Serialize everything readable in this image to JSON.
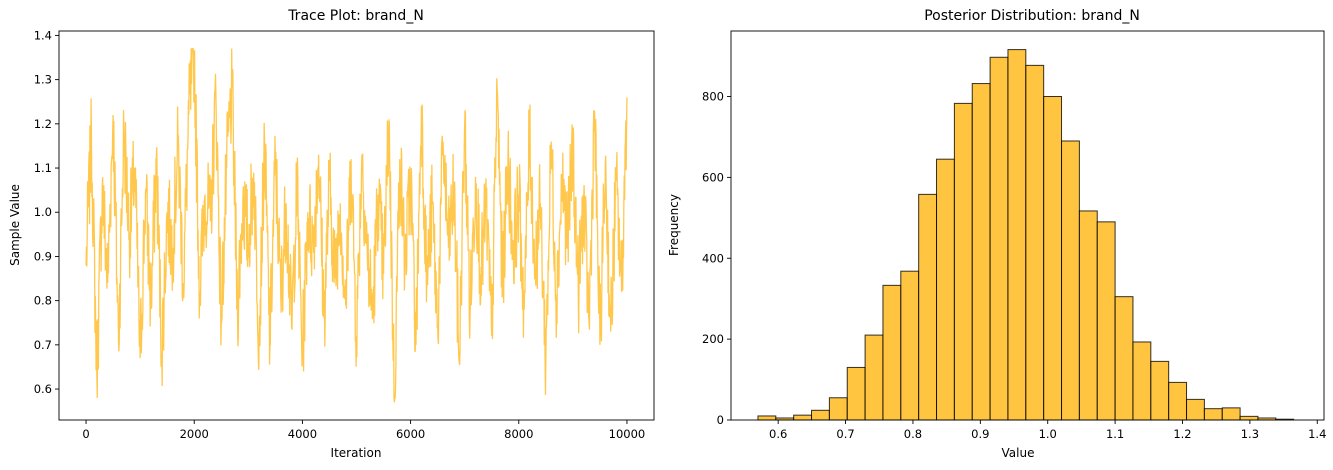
{
  "chart_data": [
    {
      "type": "line",
      "title": "Trace Plot: brand_N",
      "xlabel": "Iteration",
      "ylabel": "Sample Value",
      "xlim": [
        -500,
        10500
      ],
      "ylim": [
        0.53,
        1.41
      ],
      "xticks": [
        0,
        2000,
        4000,
        6000,
        8000,
        10000
      ],
      "xtick_labels": [
        "0",
        "2000",
        "4000",
        "6000",
        "8000",
        "10000"
      ],
      "yticks": [
        0.6,
        0.7,
        0.8,
        0.9,
        1.0,
        1.1,
        1.2,
        1.3,
        1.4
      ],
      "ytick_labels": [
        "0.6",
        "0.7",
        "0.8",
        "0.9",
        "1.0",
        "1.1",
        "1.2",
        "1.3",
        "1.4"
      ],
      "color": "#ffb000",
      "alpha": 0.7,
      "grid": false,
      "series": [
        {
          "x": [
            0,
            100,
            200,
            300,
            400,
            500,
            600,
            700,
            800,
            900,
            1000,
            1100,
            1200,
            1300,
            1400,
            1500,
            1600,
            1700,
            1800,
            1900,
            2000,
            2100,
            2200,
            2300,
            2400,
            2500,
            2600,
            2700,
            2800,
            2900,
            3000,
            3100,
            3200,
            3300,
            3400,
            3500,
            3600,
            3700,
            3800,
            3900,
            4000,
            4100,
            4200,
            4300,
            4400,
            4500,
            4600,
            4700,
            4800,
            4900,
            5000,
            5100,
            5200,
            5300,
            5400,
            5500,
            5600,
            5700,
            5800,
            5900,
            6000,
            6100,
            6200,
            6300,
            6400,
            6500,
            6600,
            6700,
            6800,
            6900,
            7000,
            7100,
            7200,
            7300,
            7400,
            7500,
            7600,
            7700,
            7800,
            7900,
            8000,
            8100,
            8200,
            8300,
            8400,
            8500,
            8600,
            8700,
            8800,
            8900,
            9000,
            9100,
            9200,
            9300,
            9400,
            9500,
            9600,
            9700,
            9800,
            9900,
            10000
          ],
          "values": [
            0.88,
            1.17,
            0.63,
            1.06,
            0.84,
            1.22,
            0.71,
            1.19,
            0.95,
            1.1,
            0.67,
            1.05,
            0.79,
            1.12,
            0.68,
            1.0,
            0.92,
            1.15,
            0.84,
            1.22,
            1.36,
            0.82,
            1.04,
            0.98,
            1.27,
            0.75,
            1.1,
            1.28,
            0.78,
            1.03,
            0.93,
            1.09,
            0.72,
            1.16,
            0.7,
            1.12,
            0.81,
            1.02,
            0.74,
            1.06,
            0.67,
            1.0,
            0.93,
            1.13,
            0.76,
            1.07,
            0.85,
            1.02,
            0.79,
            1.12,
            0.72,
            1.13,
            0.9,
            0.77,
            1.04,
            0.86,
            1.21,
            0.57,
            1.12,
            0.88,
            1.08,
            0.7,
            1.24,
            0.84,
            1.02,
            0.74,
            1.16,
            0.92,
            1.05,
            0.66,
            1.2,
            0.77,
            1.08,
            0.86,
            1.01,
            0.72,
            1.28,
            0.83,
            1.12,
            0.91,
            1.04,
            0.78,
            1.18,
            0.87,
            1.02,
            0.66,
            1.16,
            0.8,
            1.08,
            0.94,
            1.15,
            0.82,
            1.03,
            0.75,
            1.23,
            0.7,
            1.11,
            0.73,
            1.07,
            0.82,
            1.26
          ]
        }
      ]
    },
    {
      "type": "bar",
      "title": "Posterior Distribution: brand_N",
      "xlabel": "Value",
      "ylabel": "Frequency",
      "xlim": [
        0.53,
        1.41
      ],
      "ylim": [
        0,
        962
      ],
      "xticks": [
        0.6,
        0.7,
        0.8,
        0.9,
        1.0,
        1.1,
        1.2,
        1.3,
        1.4
      ],
      "xtick_labels": [
        "0.6",
        "0.7",
        "0.8",
        "0.9",
        "1.0",
        "1.1",
        "1.2",
        "1.3",
        "1.4"
      ],
      "yticks": [
        0,
        200,
        400,
        600,
        800
      ],
      "ytick_labels": [
        "0",
        "200",
        "400",
        "600",
        "800"
      ],
      "color": "#ffb000",
      "edgecolor": "#000000",
      "alpha": 0.75,
      "grid": false,
      "bin_start": 0.57,
      "bin_width": 0.0265,
      "values": [
        10,
        5,
        12,
        24,
        55,
        130,
        210,
        333,
        368,
        558,
        645,
        783,
        832,
        897,
        916,
        877,
        800,
        690,
        517,
        490,
        305,
        193,
        145,
        93,
        51,
        28,
        30,
        9,
        5,
        2
      ]
    }
  ]
}
